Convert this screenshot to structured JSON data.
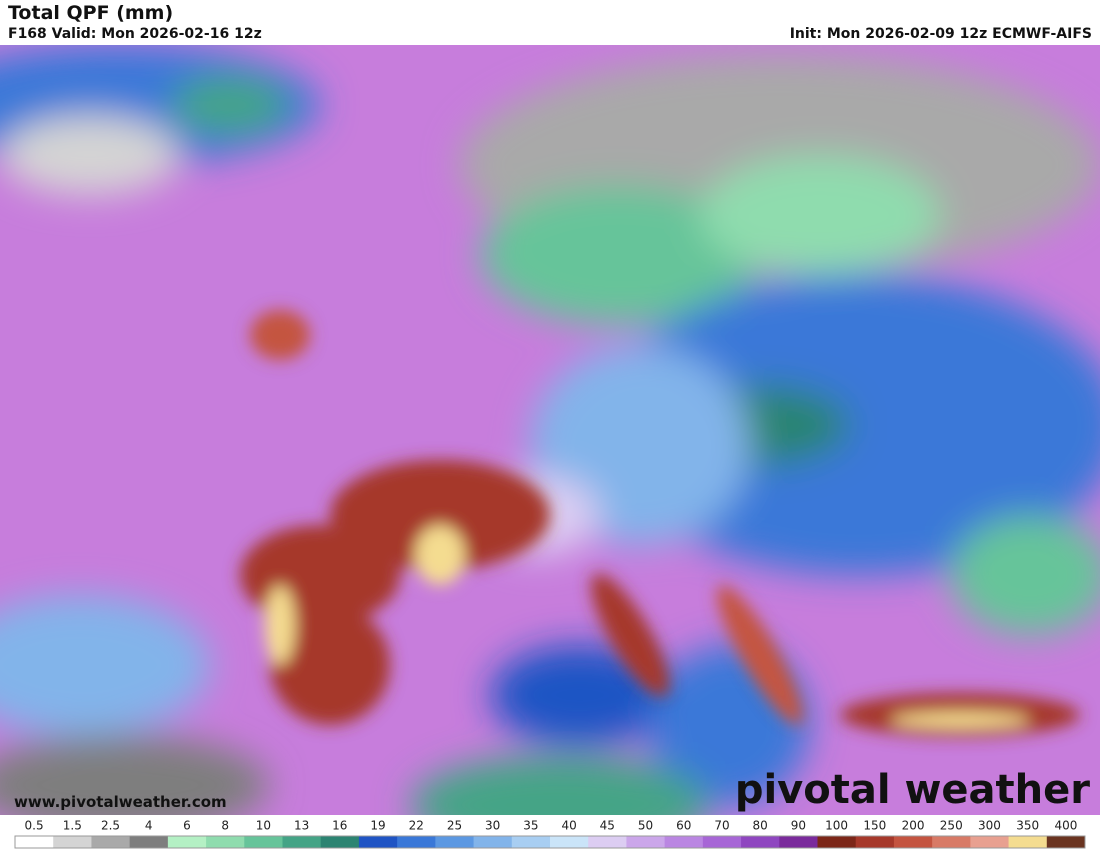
{
  "header": {
    "title": "Total QPF (mm)",
    "valid": "F168 Valid: Mon 2026-02-16 12z",
    "init": "Init: Mon 2026-02-09 12z ECMWF-AIFS"
  },
  "map": {
    "website": "www.pivotalweather.com",
    "logo": "pivotal weather"
  },
  "colorbar": {
    "labels": [
      0.5,
      1.5,
      2.5,
      4,
      6,
      8,
      10,
      13,
      16,
      19,
      22,
      25,
      30,
      35,
      40,
      45,
      50,
      60,
      70,
      80,
      90,
      100,
      150,
      200,
      250,
      300,
      350,
      400
    ],
    "colors": [
      "#ffffff",
      "#d4d4d4",
      "#a9a9a9",
      "#7e7e7e",
      "#b4f0c4",
      "#8fdcae",
      "#66c49a",
      "#44a486",
      "#2c8472",
      "#1f54c4",
      "#3a78d8",
      "#5c98e2",
      "#82b4ea",
      "#a8cef2",
      "#cae4f8",
      "#dccdf2",
      "#cba6ea",
      "#ba86e2",
      "#a766d6",
      "#8f46c0",
      "#7a2a9c",
      "#7c2618",
      "#a6382a",
      "#c45440",
      "#d87a66",
      "#e8a090",
      "#f4dc90",
      "#6a3420"
    ]
  }
}
